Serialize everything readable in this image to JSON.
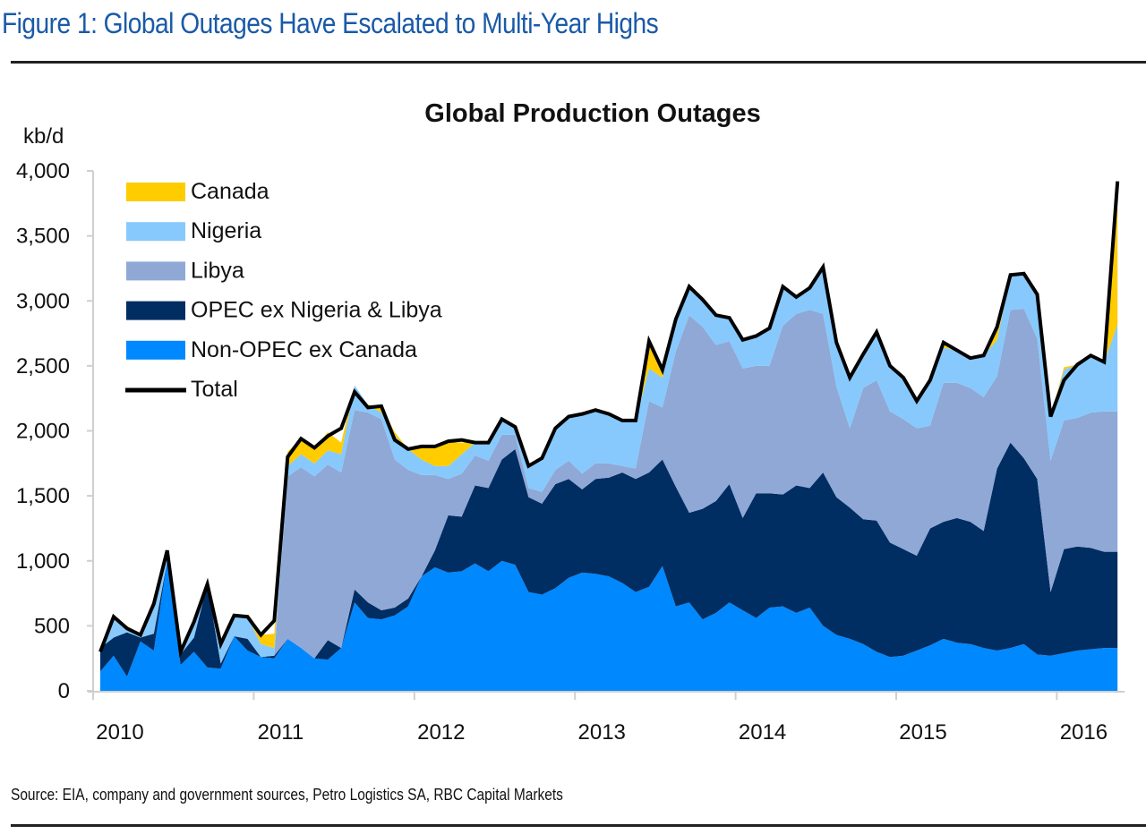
{
  "figure": {
    "title": "Figure 1: Global Outages Have Escalated to Multi-Year Highs",
    "source": "Source: EIA, company and government sources, Petro Logistics SA, RBC Capital Markets"
  },
  "colors": {
    "Canada": "#ffcc00",
    "Nigeria": "#87c9fc",
    "Libya": "#8fa8d6",
    "OPEC ex Nigeria & Libya": "#002d62",
    "Non-OPEC ex Canada": "#0088ff",
    "Total": "#000000",
    "title": "#1a5aa8"
  },
  "chart_data": {
    "type": "area",
    "stacked": true,
    "title": "Global Production Outages",
    "ylabel": "kb/d",
    "xlabel": "",
    "ylim": [
      0,
      4000
    ],
    "yticks": [
      "0",
      "500",
      "1,000",
      "1,500",
      "2,000",
      "2,500",
      "3,000",
      "3,500",
      "4,000"
    ],
    "ytick_values": [
      0,
      500,
      1000,
      1500,
      2000,
      2500,
      3000,
      3500,
      4000
    ],
    "xticks": [
      "2010",
      "2011",
      "2012",
      "2013",
      "2014",
      "2015",
      "2016"
    ],
    "x_start": "2010-01",
    "x_end": "2016-05",
    "frequency": "monthly",
    "legend_position": "top-left",
    "grid": false,
    "series": [
      {
        "name": "Non-OPEC ex Canada",
        "values": [
          150,
          270,
          110,
          380,
          310,
          1000,
          200,
          300,
          180,
          170,
          420,
          310,
          260,
          250,
          400,
          330,
          250,
          240,
          330,
          680,
          560,
          550,
          580,
          650,
          880,
          950,
          910,
          920,
          980,
          920,
          1000,
          970,
          760,
          740,
          790,
          870,
          910,
          900,
          880,
          830,
          760,
          800,
          960,
          650,
          680,
          550,
          600,
          680,
          620,
          560,
          640,
          650,
          600,
          640,
          500,
          430,
          400,
          360,
          300,
          260,
          270,
          310,
          350,
          400,
          370,
          360,
          330,
          310,
          330,
          360,
          280,
          270,
          290,
          310,
          320,
          330,
          330
        ]
      },
      {
        "name": "OPEC ex Nigeria & Libya",
        "values": [
          180,
          140,
          340,
          30,
          130,
          0,
          80,
          110,
          640,
          40,
          0,
          90,
          0,
          20,
          0,
          0,
          0,
          150,
          0,
          100,
          120,
          70,
          60,
          60,
          0,
          130,
          440,
          420,
          600,
          640,
          780,
          890,
          730,
          700,
          800,
          760,
          640,
          730,
          760,
          850,
          870,
          880,
          820,
          920,
          690,
          850,
          860,
          910,
          710,
          960,
          880,
          860,
          980,
          920,
          1180,
          1060,
          1010,
          960,
          1010,
          880,
          820,
          730,
          900,
          900,
          960,
          940,
          900,
          1400,
          1580,
          1430,
          1350,
          490,
          800,
          800,
          780,
          740,
          740
        ]
      },
      {
        "name": "Libya",
        "values": [
          0,
          0,
          0,
          0,
          0,
          0,
          0,
          0,
          0,
          0,
          0,
          0,
          0,
          0,
          1250,
          1390,
          1400,
          1350,
          1350,
          1380,
          1460,
          1470,
          1140,
          990,
          780,
          580,
          280,
          330,
          230,
          210,
          190,
          110,
          70,
          90,
          110,
          140,
          120,
          120,
          110,
          50,
          80,
          550,
          400,
          1040,
          1520,
          1400,
          1200,
          1100,
          1150,
          980,
          980,
          1300,
          1320,
          1370,
          1220,
          850,
          610,
          1010,
          1080,
          1010,
          1000,
          980,
          790,
          1070,
          1040,
          1030,
          1030,
          710,
          1020,
          1150,
          1080,
          1010,
          990,
          990,
          1040,
          1080,
          1080
        ]
      },
      {
        "name": "Nigeria",
        "values": [
          10,
          160,
          30,
          20,
          230,
          80,
          20,
          120,
          0,
          150,
          160,
          170,
          100,
          60,
          80,
          100,
          100,
          110,
          140,
          190,
          60,
          50,
          180,
          160,
          120,
          70,
          100,
          150,
          100,
          140,
          120,
          60,
          170,
          260,
          320,
          340,
          460,
          410,
          380,
          350,
          370,
          250,
          230,
          250,
          220,
          210,
          220,
          180,
          220,
          230,
          290,
          300,
          130,
          170,
          360,
          340,
          390,
          260,
          370,
          350,
          320,
          210,
          340,
          270,
          250,
          230,
          320,
          280,
          270,
          270,
          340,
          340,
          390,
          410,
          440,
          380,
          670
        ]
      },
      {
        "name": "Canada",
        "values": [
          0,
          0,
          20,
          0,
          0,
          0,
          0,
          0,
          0,
          0,
          0,
          0,
          70,
          110,
          110,
          120,
          110,
          140,
          90,
          0,
          0,
          50,
          30,
          0,
          100,
          150,
          190,
          90,
          0,
          0,
          0,
          0,
          0,
          0,
          10,
          0,
          0,
          0,
          0,
          0,
          0,
          210,
          60,
          0,
          0,
          0,
          10,
          0,
          0,
          0,
          0,
          0,
          0,
          0,
          0,
          0,
          0,
          0,
          0,
          0,
          0,
          0,
          10,
          40,
          0,
          0,
          0,
          100,
          0,
          0,
          0,
          0,
          20,
          0,
          0,
          0,
          1100
        ]
      },
      {
        "name": "Total",
        "line": true,
        "values": [
          300,
          570,
          480,
          430,
          670,
          1080,
          300,
          530,
          820,
          360,
          580,
          570,
          430,
          540,
          1800,
          1940,
          1870,
          1960,
          2020,
          2300,
          2180,
          2190,
          1930,
          1860,
          1880,
          1880,
          1920,
          1930,
          1910,
          1910,
          2090,
          2030,
          1730,
          1790,
          2020,
          2110,
          2130,
          2160,
          2130,
          2080,
          2080,
          2690,
          2470,
          2860,
          3110,
          3010,
          2890,
          2870,
          2700,
          2730,
          2790,
          3110,
          3030,
          3100,
          3260,
          2680,
          2410,
          2590,
          2760,
          2500,
          2410,
          2230,
          2390,
          2680,
          2620,
          2560,
          2580,
          2800,
          3200,
          3210,
          3050,
          2110,
          2390,
          2510,
          2580,
          2530,
          3920
        ]
      }
    ]
  }
}
